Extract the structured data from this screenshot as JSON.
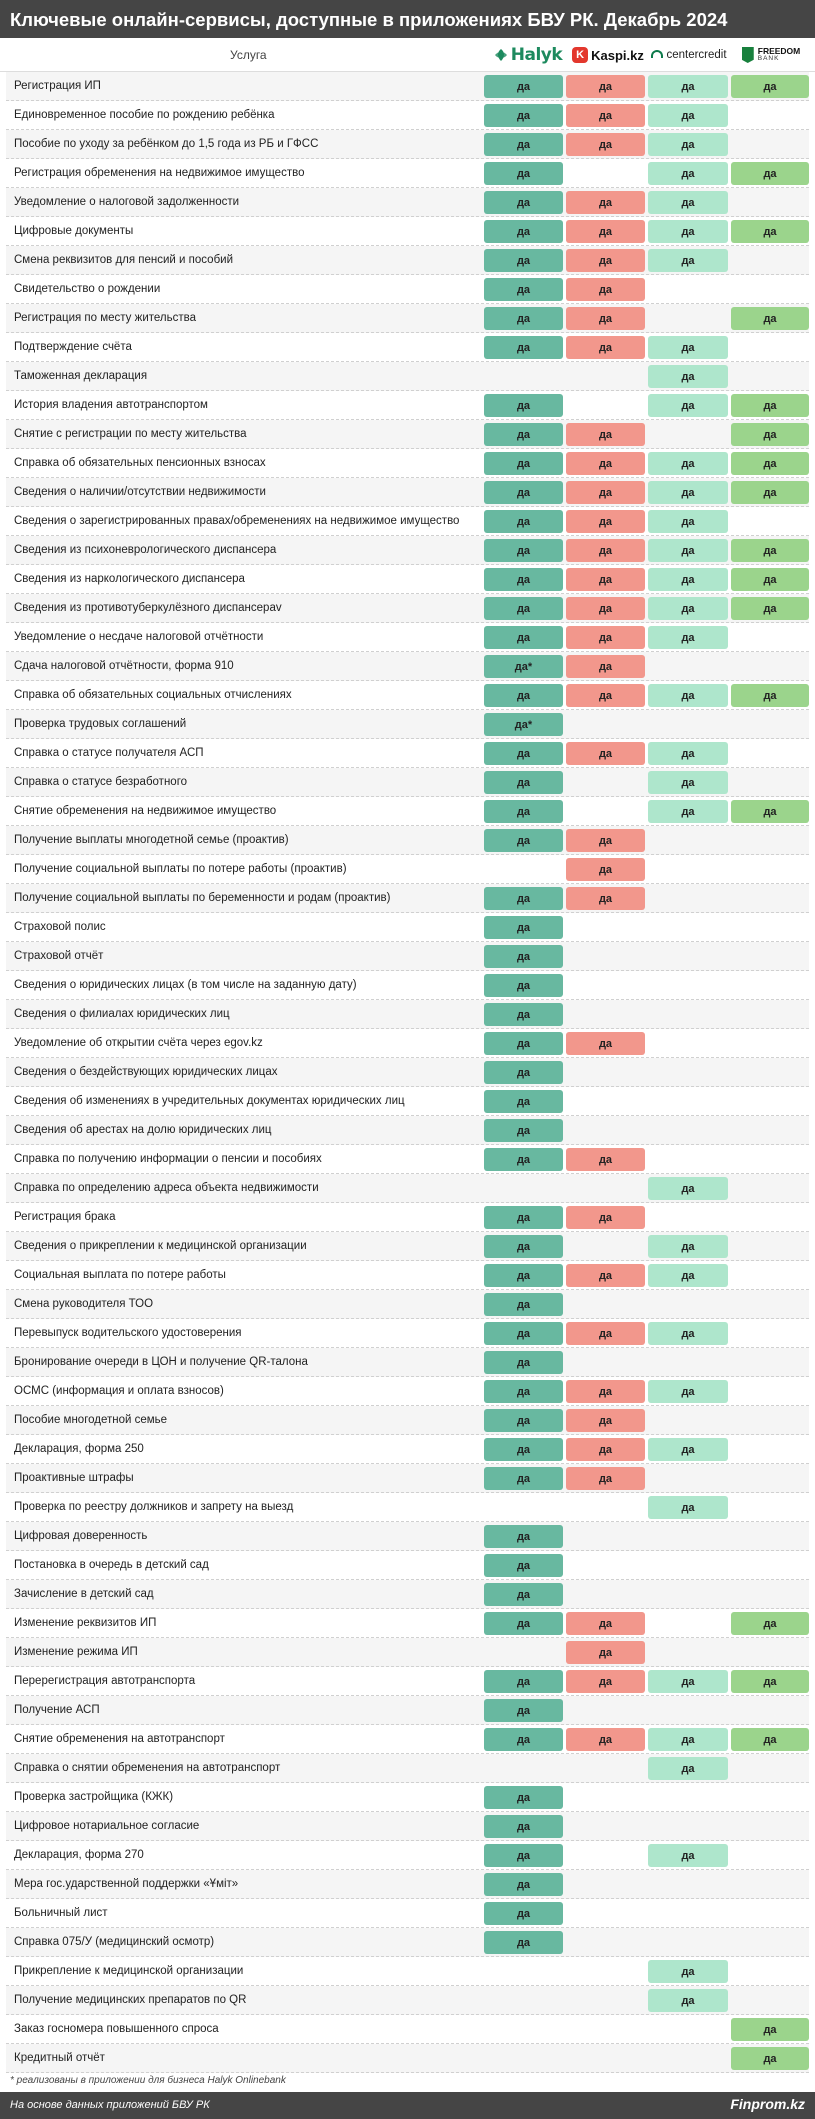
{
  "title": "Ключевые онлайн-сервисы, доступные в приложениях БВУ РК. Декабрь 2024",
  "column_header": "Услуга",
  "logos": {
    "halyk": "Halyk",
    "kaspi_glyph": "K",
    "kaspi": "Kaspi.kz",
    "centercredit": "centercredit",
    "freedom_1": "FREEDOM",
    "freedom_2": "BANK"
  },
  "colors": {
    "halyk": "#68b8a0",
    "kaspi": "#f2978c",
    "centercredit": "#aee6cc",
    "freedom": "#9bd48c",
    "header_bg": "#454545"
  },
  "chart_data": {
    "type": "table",
    "columns": [
      "Halyk",
      "Kaspi.kz",
      "centercredit",
      "Freedom Bank"
    ],
    "rows": [
      {
        "service": "Регистрация ИП",
        "values": [
          "да",
          "да",
          "да",
          "да"
        ]
      },
      {
        "service": "Единовременное пособие по рождению ребёнка",
        "values": [
          "да",
          "да",
          "да",
          ""
        ]
      },
      {
        "service": "Пособие по уходу за ребёнком до 1,5 года из РБ и ГФСС",
        "values": [
          "да",
          "да",
          "да",
          ""
        ]
      },
      {
        "service": "Регистрация обременения на недвижимое имущество",
        "values": [
          "да",
          "",
          "да",
          "да"
        ]
      },
      {
        "service": "Уведомление о налоговой задолженности",
        "values": [
          "да",
          "да",
          "да",
          ""
        ]
      },
      {
        "service": "Цифровые документы",
        "values": [
          "да",
          "да",
          "да",
          "да"
        ]
      },
      {
        "service": "Смена реквизитов для пенсий и пособий",
        "values": [
          "да",
          "да",
          "да",
          ""
        ]
      },
      {
        "service": "Свидетельство о рождении",
        "values": [
          "да",
          "да",
          "",
          ""
        ]
      },
      {
        "service": "Регистрация по месту жительства",
        "values": [
          "да",
          "да",
          "",
          "да"
        ]
      },
      {
        "service": "Подтверждение счёта",
        "values": [
          "да",
          "да",
          "да",
          ""
        ]
      },
      {
        "service": "Таможенная декларация",
        "values": [
          "",
          "",
          "да",
          ""
        ]
      },
      {
        "service": "История владения автотранспортом",
        "values": [
          "да",
          "",
          "да",
          "да"
        ]
      },
      {
        "service": "Снятие с регистрации по месту жительства",
        "values": [
          "да",
          "да",
          "",
          "да"
        ]
      },
      {
        "service": "Справка об обязательных пенсионных взносах",
        "values": [
          "да",
          "да",
          "да",
          "да"
        ]
      },
      {
        "service": "Сведения о наличии/отсутствии недвижимости",
        "values": [
          "да",
          "да",
          "да",
          "да"
        ]
      },
      {
        "service": "Сведения о зарегистрированных правах/обременениях на недвижимое имущество",
        "values": [
          "да",
          "да",
          "да",
          ""
        ]
      },
      {
        "service": "Сведения из психоневрологического диспансера",
        "values": [
          "да",
          "да",
          "да",
          "да"
        ]
      },
      {
        "service": "Сведения из наркологического диспансера",
        "values": [
          "да",
          "да",
          "да",
          "да"
        ]
      },
      {
        "service": "Сведения из противотуберкулёзного диспансераv",
        "values": [
          "да",
          "да",
          "да",
          "да"
        ]
      },
      {
        "service": "Уведомление о несдаче налоговой отчётности",
        "values": [
          "да",
          "да",
          "да",
          ""
        ]
      },
      {
        "service": "Сдача налоговой отчётности, форма 910",
        "values": [
          "да*",
          "да",
          "",
          ""
        ]
      },
      {
        "service": "Справка об обязательных социальных отчислениях",
        "values": [
          "да",
          "да",
          "да",
          "да"
        ]
      },
      {
        "service": "Проверка трудовых соглашений",
        "values": [
          "да*",
          "",
          "",
          ""
        ]
      },
      {
        "service": "Справка о статусе получателя АСП",
        "values": [
          "да",
          "да",
          "да",
          ""
        ]
      },
      {
        "service": "Справка о статусе безработного",
        "values": [
          "да",
          "",
          "да",
          ""
        ]
      },
      {
        "service": "Снятие обременения на недвижимое имущество",
        "values": [
          "да",
          "",
          "да",
          "да"
        ]
      },
      {
        "service": "Получение выплаты многодетной семье (проактив)",
        "values": [
          "да",
          "да",
          "",
          ""
        ]
      },
      {
        "service": "Получение социальной выплаты по потере работы (проактив)",
        "values": [
          "",
          "да",
          "",
          ""
        ]
      },
      {
        "service": "Получение социальной выплаты по беременности и родам (проактив)",
        "values": [
          "да",
          "да",
          "",
          ""
        ]
      },
      {
        "service": "Страховой полис",
        "values": [
          "да",
          "",
          "",
          ""
        ]
      },
      {
        "service": "Страховой отчёт",
        "values": [
          "да",
          "",
          "",
          ""
        ]
      },
      {
        "service": "Сведения о юридических лицах (в том числе на заданную дату)",
        "values": [
          "да",
          "",
          "",
          ""
        ]
      },
      {
        "service": "Сведения о филиалах юридических лиц",
        "values": [
          "да",
          "",
          "",
          ""
        ]
      },
      {
        "service": "Уведомление об открытии счёта через egov.kz",
        "values": [
          "да",
          "да",
          "",
          ""
        ]
      },
      {
        "service": "Сведения о бездействующих юридических лицах",
        "values": [
          "да",
          "",
          "",
          ""
        ]
      },
      {
        "service": "Сведения об изменениях в учредительных документах юридических лиц",
        "values": [
          "да",
          "",
          "",
          ""
        ]
      },
      {
        "service": "Сведения об арестах на долю юридических лиц",
        "values": [
          "да",
          "",
          "",
          ""
        ]
      },
      {
        "service": "Справка по получению информации о пенсии и пособиях",
        "values": [
          "да",
          "да",
          "",
          ""
        ]
      },
      {
        "service": "Справка по определению адреса объекта недвижимости",
        "values": [
          "",
          "",
          "да",
          ""
        ]
      },
      {
        "service": "Регистрация брака",
        "values": [
          "да",
          "да",
          "",
          ""
        ]
      },
      {
        "service": "Сведения о прикреплении к медицинской организации",
        "values": [
          "да",
          "",
          "да",
          ""
        ]
      },
      {
        "service": "Социальная выплата по потере работы",
        "values": [
          "да",
          "да",
          "да",
          ""
        ]
      },
      {
        "service": "Смена руководителя ТОО",
        "values": [
          "да",
          "",
          "",
          ""
        ]
      },
      {
        "service": "Перевыпуск водительского удостоверения",
        "values": [
          "да",
          "да",
          "да",
          ""
        ]
      },
      {
        "service": "Бронирование очереди в ЦОН и получение QR-талона",
        "values": [
          "да",
          "",
          "",
          ""
        ]
      },
      {
        "service": "ОСМС (информация и оплата взносов)",
        "values": [
          "да",
          "да",
          "да",
          ""
        ]
      },
      {
        "service": "Пособие многодетной семье",
        "values": [
          "да",
          "да",
          "",
          ""
        ]
      },
      {
        "service": "Декларация, форма 250",
        "values": [
          "да",
          "да",
          "да",
          ""
        ]
      },
      {
        "service": "Проактивные штрафы",
        "values": [
          "да",
          "да",
          "",
          ""
        ]
      },
      {
        "service": "Проверка по реестру должников и запрету на выезд",
        "values": [
          "",
          "",
          "да",
          ""
        ]
      },
      {
        "service": "Цифровая доверенность",
        "values": [
          "да",
          "",
          "",
          ""
        ]
      },
      {
        "service": "Постановка в очередь в детский сад",
        "values": [
          "да",
          "",
          "",
          ""
        ]
      },
      {
        "service": "Зачисление в детский сад",
        "values": [
          "да",
          "",
          "",
          ""
        ]
      },
      {
        "service": "Изменение реквизитов ИП",
        "values": [
          "да",
          "да",
          "",
          "да"
        ]
      },
      {
        "service": "Изменение режима ИП",
        "values": [
          "",
          "да",
          "",
          ""
        ]
      },
      {
        "service": "Перерегистрация автотранспорта",
        "values": [
          "да",
          "да",
          "да",
          "да"
        ]
      },
      {
        "service": "Получение АСП",
        "values": [
          "да",
          "",
          "",
          ""
        ]
      },
      {
        "service": "Снятие обременения на автотранспорт",
        "values": [
          "да",
          "да",
          "да",
          "да"
        ]
      },
      {
        "service": "Справка о снятии обременения на автотранспорт",
        "values": [
          "",
          "",
          "да",
          ""
        ]
      },
      {
        "service": "Проверка застройщика (КЖК)",
        "values": [
          "да",
          "",
          "",
          ""
        ]
      },
      {
        "service": "Цифровое нотариальное согласие",
        "values": [
          "да",
          "",
          "",
          ""
        ]
      },
      {
        "service": "Декларация, форма 270",
        "values": [
          "да",
          "",
          "да",
          ""
        ]
      },
      {
        "service": "Мера гос.ударственной поддержки «Ұміт»",
        "values": [
          "да",
          "",
          "",
          ""
        ]
      },
      {
        "service": "Больничный лист",
        "values": [
          "да",
          "",
          "",
          ""
        ]
      },
      {
        "service": "Справка 075/У (медицинский осмотр)",
        "values": [
          "да",
          "",
          "",
          ""
        ]
      },
      {
        "service": "Прикрепление к медицинской организации",
        "values": [
          "",
          "",
          "да",
          ""
        ]
      },
      {
        "service": "Получение медицинских препаратов по QR",
        "values": [
          "",
          "",
          "да",
          ""
        ]
      },
      {
        "service": "Заказ госномера повышенного спроса",
        "values": [
          "",
          "",
          "",
          "да"
        ]
      },
      {
        "service": "Кредитный отчёт",
        "values": [
          "",
          "",
          "",
          "да"
        ]
      }
    ]
  },
  "footnote": "* реализованы в приложении для бизнеса Halyk Onlinebank",
  "footer": {
    "source": "На основе данных приложений БВУ РК",
    "brand": "Finprom.kz"
  }
}
